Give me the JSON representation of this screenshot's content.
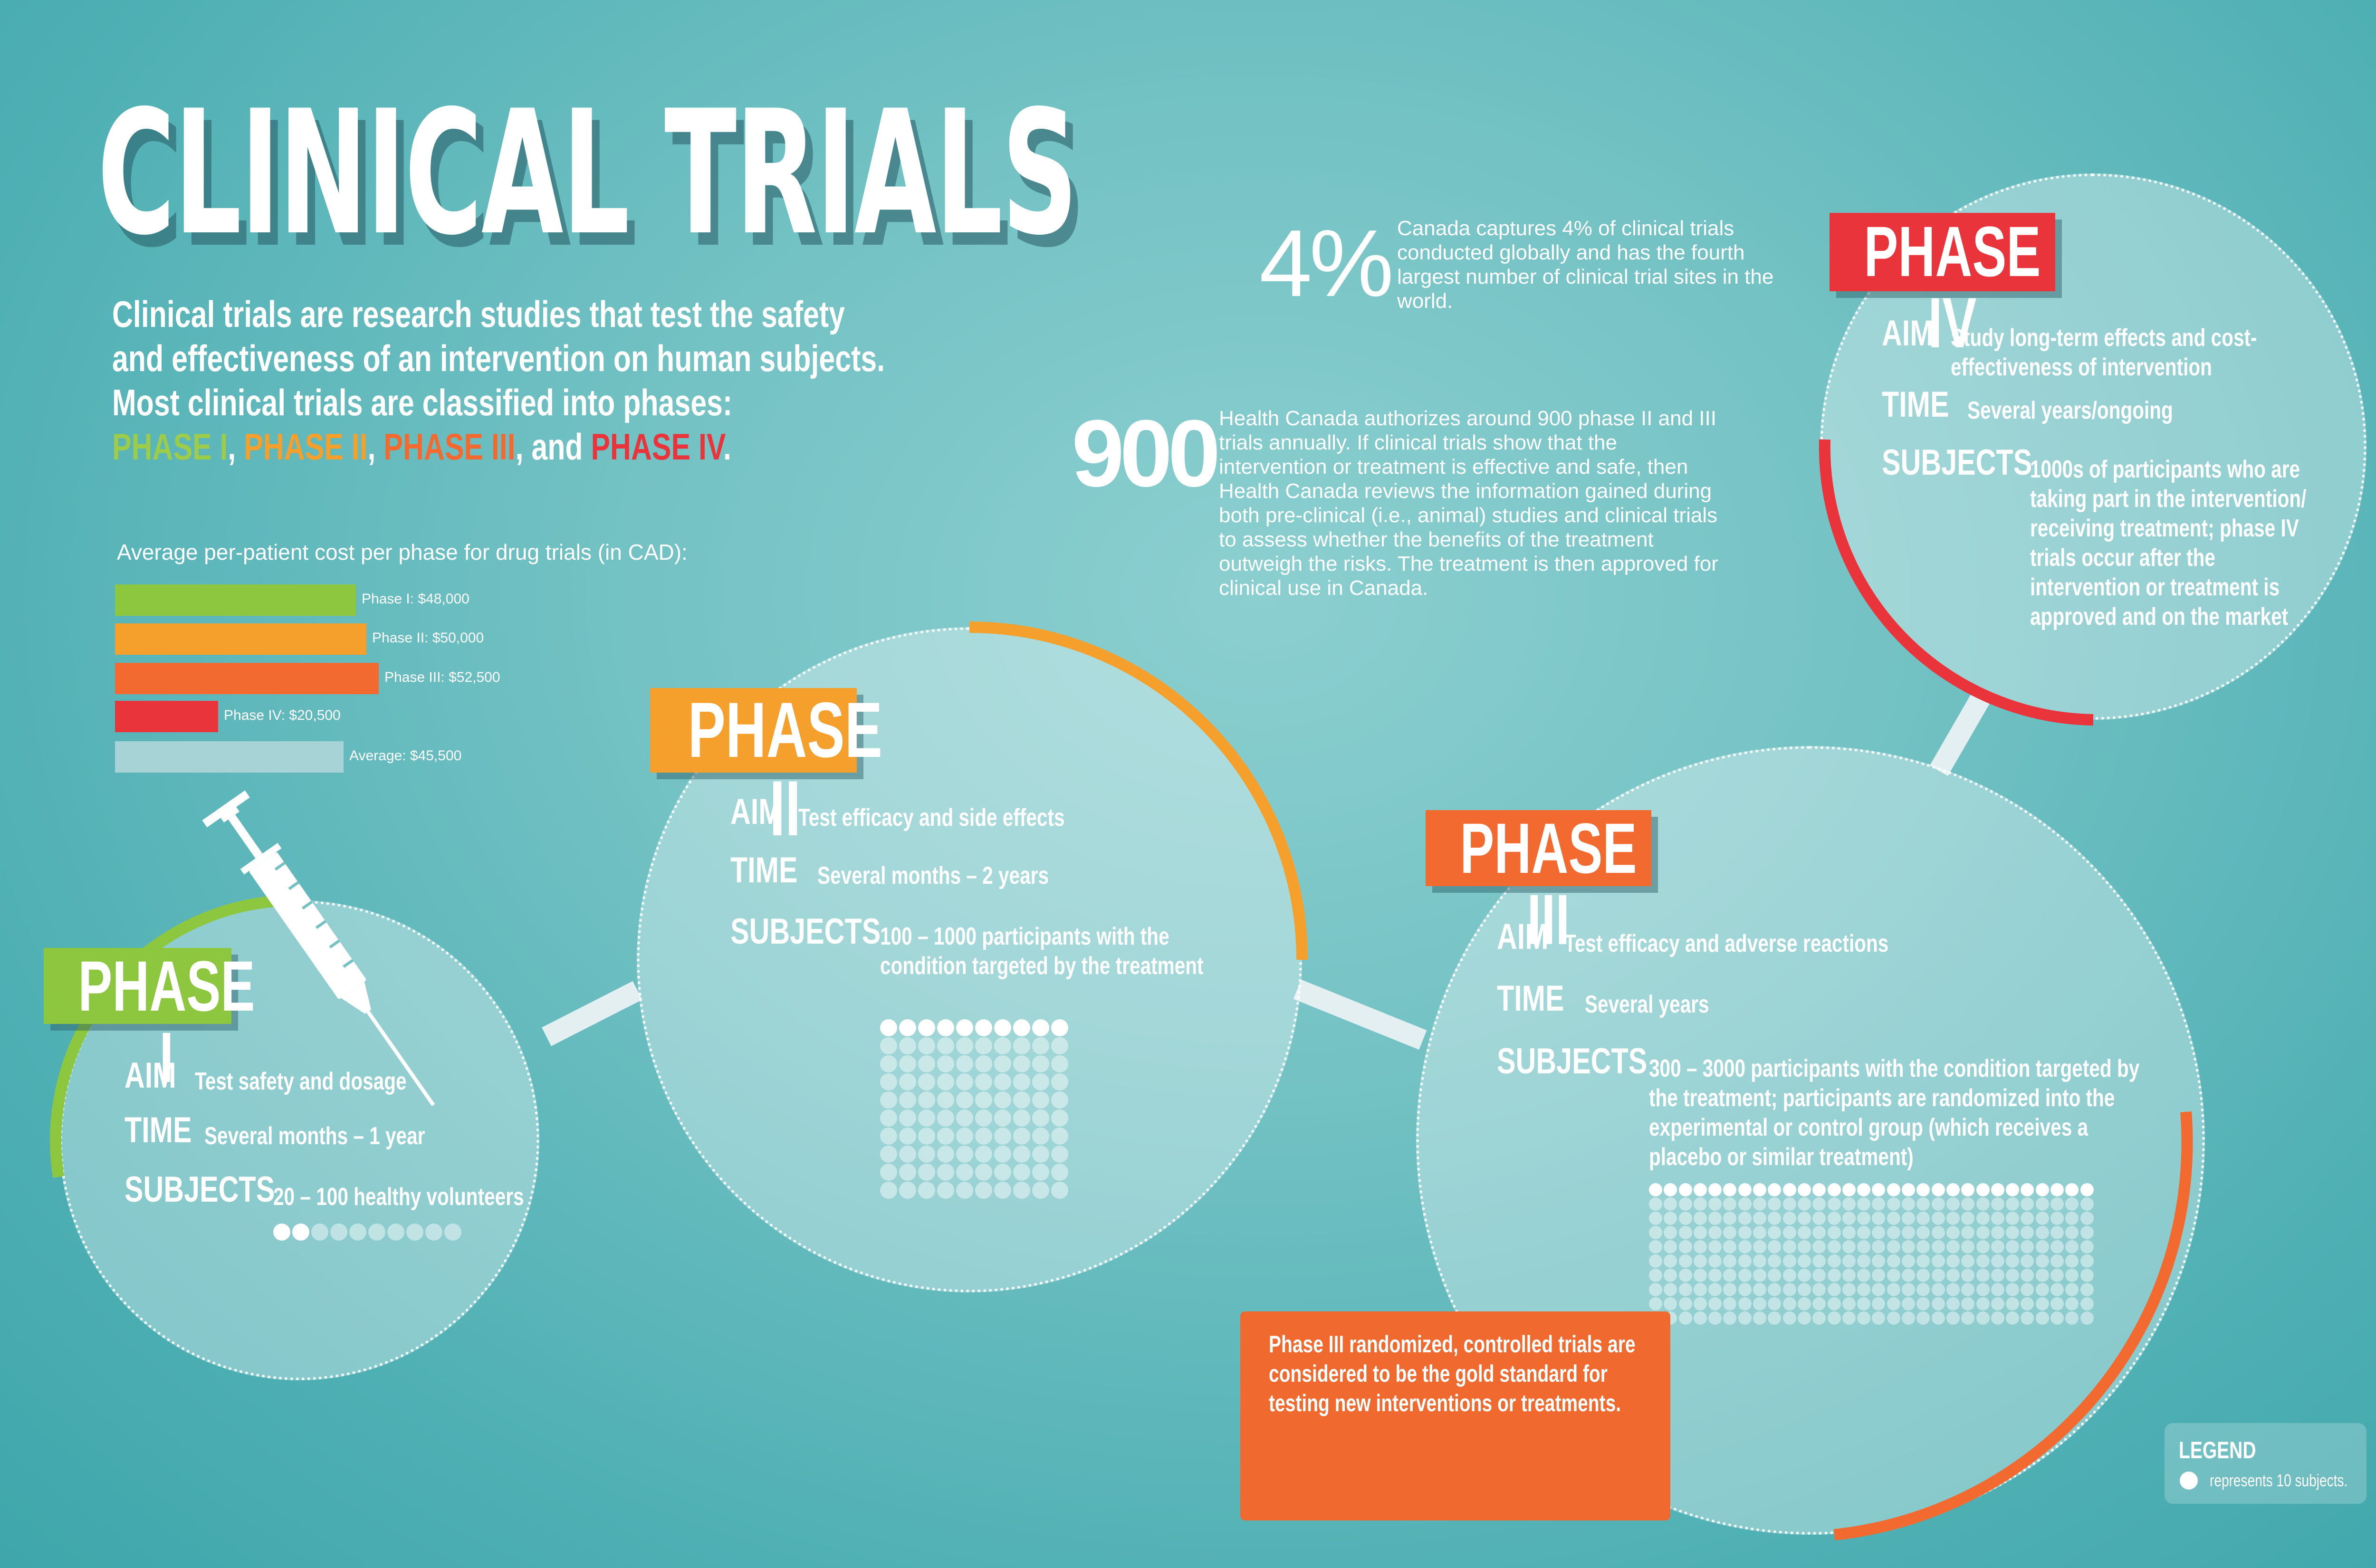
{
  "title": "CLINICAL TRIALS",
  "intro": {
    "line1": "Clinical trials are research studies that test the safety",
    "line2": "and effectiveness of an intervention on human subjects.",
    "line3": "Most clinical trials are classified into phases:",
    "phase1": "PHASE I",
    "phase2": "PHASE II",
    "phase3": "PHASE III",
    "phase4": "PHASE IV",
    "sep1": ", ",
    "sep2": ", ",
    "sep3": ", and ",
    "end": "."
  },
  "cost_chart": {
    "title": "Average per-patient cost per phase for drug trials (in CAD):",
    "bars": [
      {
        "label": "Phase I: $48,000",
        "value": 48000,
        "color": "#8dc63f"
      },
      {
        "label": "Phase II: $50,000",
        "value": 50000,
        "color": "#f5a02c"
      },
      {
        "label": "Phase III: $52,500",
        "value": 52500,
        "color": "#f36a30"
      },
      {
        "label": "Phase IV: $20,500",
        "value": 20500,
        "color": "#e8343a"
      },
      {
        "label": "Average: $45,500",
        "value": 45500,
        "color": "#a8d3d6"
      }
    ]
  },
  "stats": {
    "pct_value": "4%",
    "pct_text": "Canada captures 4% of clinical trials conducted globally and has the fourth largest number of clinical trial sites in the world.",
    "num_value": "900",
    "num_text": "Health Canada authorizes around 900 phase II and III trials annually. If clinical trials show that the intervention or treatment is effective and safe, then Health Canada reviews the information gained during both pre-clinical (i.e., animal) studies and clinical trials to assess whether the benefits of the treatment outweigh the risks. The treatment is then approved for clinical use in Canada."
  },
  "key_labels": {
    "aim": "AIM",
    "time": "TIME",
    "subjects": "SUBJECTS"
  },
  "phases": [
    {
      "label": "PHASE I",
      "color": "#8dc63f",
      "aim": "Test safety and dosage",
      "time": "Several months – 1 year",
      "subjects": "20 – 100 healthy volunteers",
      "subjects_min": 20,
      "subjects_max": 100
    },
    {
      "label": "PHASE II",
      "color": "#f5a02c",
      "aim": "Test efficacy and side effects",
      "time": "Several months – 2 years",
      "subjects": "100 – 1000 participants with the condition targeted by the treatment",
      "subjects_min": 100,
      "subjects_max": 1000
    },
    {
      "label": "PHASE III",
      "color": "#f36a30",
      "aim": "Test efficacy and adverse reactions",
      "time": "Several years",
      "subjects": "300 – 3000 participants with the condition targeted by the treatment; participants are randomized into the experimental or control group (which receives a placebo or similar treatment)",
      "subjects_min": 300,
      "subjects_max": 3000
    },
    {
      "label": "PHASE IV",
      "color": "#e8343a",
      "aim": "Study long-term effects and cost-effectiveness of intervention",
      "time": "Several years/ongoing",
      "subjects": "1000s of participants who are taking part in the intervention/ receiving treatment; phase IV trials occur after the intervention or treatment is approved and on the market"
    }
  ],
  "callout": "Phase III randomized, controlled trials are considered to be the gold standard for testing new interventions or treatments.",
  "legend": {
    "title": "LEGEND",
    "text": "represents 10 subjects."
  }
}
